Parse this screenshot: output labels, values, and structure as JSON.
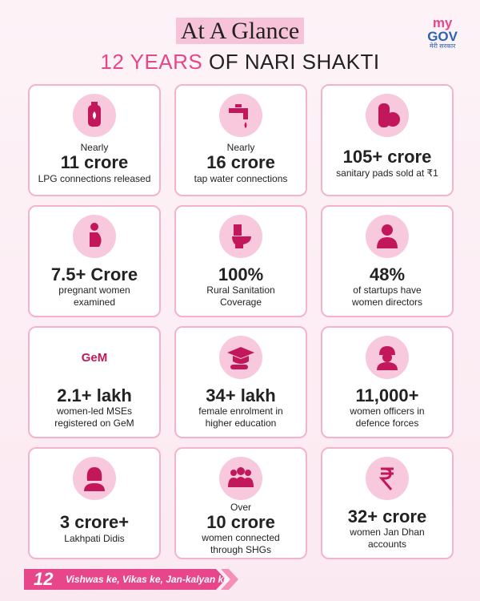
{
  "header": {
    "title": "At A Glance",
    "subtitle": "12 YEARS",
    "subtitle_rest": "OF NARI SHAKTI"
  },
  "logo": {
    "top": "my",
    "bottom": "GOV",
    "tagline": "मेरी सरकार"
  },
  "cards": [
    {
      "pre": "Nearly",
      "value": "11 crore",
      "desc": "LPG connections released"
    },
    {
      "pre": "Nearly",
      "value": "16 crore",
      "desc": "tap water connections"
    },
    {
      "value": "105+ crore",
      "desc": "sanitary pads sold at ₹1"
    },
    {
      "value": "7.5+ Crore",
      "desc": "pregnant women examined"
    },
    {
      "value": "100%",
      "desc": "Rural Sanitation Coverage"
    },
    {
      "value": "48%",
      "desc": "of startups have women directors"
    },
    {
      "icon_text": "GeM",
      "value": "2.1+ lakh",
      "desc": "women-led MSEs registered on GeM"
    },
    {
      "value": "34+ lakh",
      "desc": "female enrolment in higher education"
    },
    {
      "value": "11,000+",
      "desc": "women officers in defence forces"
    },
    {
      "value": "3 crore+",
      "desc": "Lakhpati Didis"
    },
    {
      "pre": "Over",
      "value": "10 crore",
      "desc": "women connected through SHGs"
    },
    {
      "value": "32+ crore",
      "desc": "women Jan Dhan accounts"
    }
  ],
  "footer": {
    "number": "12",
    "tagline": "Vishwas ke, Vikas ke, Jan-kalyan ke"
  }
}
